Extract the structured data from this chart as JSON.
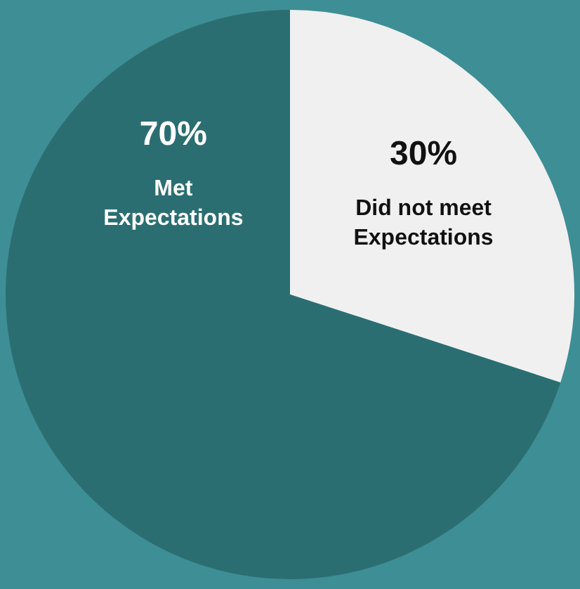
{
  "chart_data": {
    "type": "pie",
    "categories": [
      "Did not meet Expectations",
      "Met Expectations"
    ],
    "values": [
      30,
      70
    ],
    "value_labels": [
      "30%",
      "70%"
    ],
    "colors": [
      "#f0f0f0",
      "#2b6e72"
    ],
    "legend": false
  }
}
